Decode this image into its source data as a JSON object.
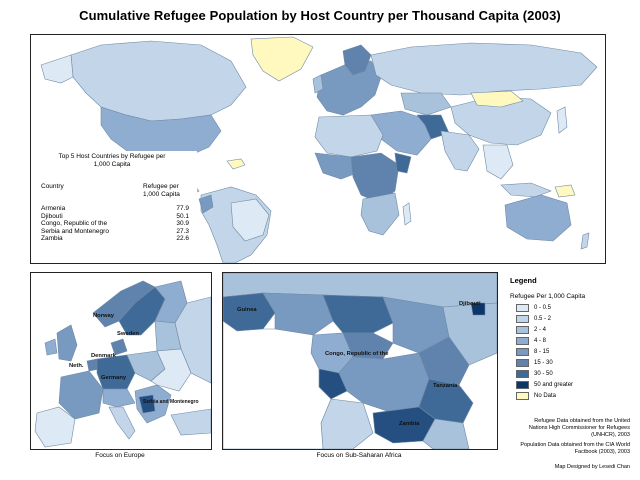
{
  "title": "Cumulative Refugee Population by Host Country per Thousand Capita (2003)",
  "colors": {
    "nodata": "#fff9c0",
    "ocean": "#ffffff",
    "border": "#6f8aa6",
    "classes": [
      "#dde9f4",
      "#c3d5e8",
      "#a9c2dc",
      "#8fadd0",
      "#7899c0",
      "#5f83ad",
      "#3f6a98",
      "#244f80",
      "#0b3668"
    ]
  },
  "top_five": {
    "heading": "Top 5 Host Countries by Refugee per 1,000 Capita",
    "col_country": "Country",
    "col_value": "Refugee per 1,000 Capita",
    "rows": [
      {
        "country": "Armenia",
        "value": "77.9"
      },
      {
        "country": "Djibouti",
        "value": "50.1"
      },
      {
        "country": "Congo, Republic of the",
        "value": "30.9"
      },
      {
        "country": "Serbia and Montenegro",
        "value": "27.3"
      },
      {
        "country": "Zambia",
        "value": "22.6"
      }
    ]
  },
  "legend": {
    "title": "Legend",
    "subtitle": "Refugee Per 1,000 Capita",
    "items": [
      {
        "label": "0 - 0.5"
      },
      {
        "label": "0.5 - 2"
      },
      {
        "label": "2 - 4"
      },
      {
        "label": "4 - 8"
      },
      {
        "label": "8 - 15"
      },
      {
        "label": "15 - 30"
      },
      {
        "label": "30 - 50"
      },
      {
        "label": "50 and greater"
      },
      {
        "label": "No Data"
      }
    ]
  },
  "europe_labels": {
    "norway": "Norway",
    "sweden": "Sweden",
    "denmark": "Denmark",
    "netherlands": "Neth.",
    "germany": "Germany",
    "serbia": "Serbia and Montenegro"
  },
  "africa_labels": {
    "guinea": "Guinea",
    "djibouti": "Djibouti",
    "congo": "Congo, Republic of the",
    "tanzania": "Tanzania",
    "zambia": "Zambia"
  },
  "captions": {
    "europe": "Focus on Europe",
    "africa": "Focus on Sub-Saharan Africa"
  },
  "sources": {
    "refugee": "Refugee Data obtained from the United Nations High Commissioner for Refugees (UNHCR), 2003",
    "population": "Population Data obtained from the CIA World Factbook (2003), 2003",
    "designer": "Map Designed by Lesedi Chan"
  }
}
